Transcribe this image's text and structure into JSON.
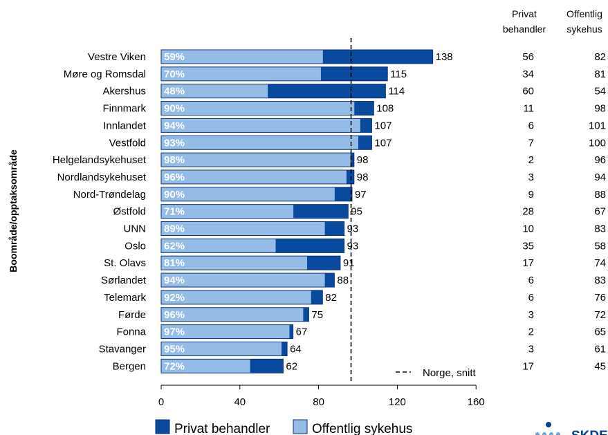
{
  "chart_data": {
    "type": "bar",
    "orientation": "horizontal",
    "stacked": true,
    "ylabel": "Boområde/opptaksområde",
    "xticks": [
      0,
      40,
      80,
      120,
      160
    ],
    "xlim": [
      0,
      160
    ],
    "reference_line": {
      "value": 96.5,
      "label": "Norge, snitt"
    },
    "table_headers": {
      "private": [
        "Privat",
        "behandler"
      ],
      "public": [
        "Offentlig",
        "sykehus"
      ]
    },
    "legend": {
      "placement": "bottom",
      "private_label": "Privat behandler",
      "public_label": "Offentlig sykehus"
    },
    "colors": {
      "private": "#0a4a9e",
      "public": "#95bce6"
    },
    "rows": [
      {
        "name": "Vestre Viken",
        "total": "138",
        "pct": "59%",
        "private": "56",
        "public": "82"
      },
      {
        "name": "Møre og Romsdal",
        "total": "115",
        "pct": "70%",
        "private": "34",
        "public": "81"
      },
      {
        "name": "Akershus",
        "total": "114",
        "pct": "48%",
        "private": "60",
        "public": "54"
      },
      {
        "name": "Finnmark",
        "total": "108",
        "pct": "90%",
        "private": "11",
        "public": "98"
      },
      {
        "name": "Innlandet",
        "total": "107",
        "pct": "94%",
        "private": "6",
        "public": "101"
      },
      {
        "name": "Vestfold",
        "total": "107",
        "pct": "93%",
        "private": "7",
        "public": "100"
      },
      {
        "name": "Helgelandsykehuset",
        "total": "98",
        "pct": "98%",
        "private": "2",
        "public": "96"
      },
      {
        "name": "Nordlandsykehuset",
        "total": "98",
        "pct": "96%",
        "private": "3",
        "public": "94"
      },
      {
        "name": "Nord-Trøndelag",
        "total": "97",
        "pct": "90%",
        "private": "9",
        "public": "88"
      },
      {
        "name": "Østfold",
        "total": "95",
        "pct": "71%",
        "private": "28",
        "public": "67"
      },
      {
        "name": "UNN",
        "total": "93",
        "pct": "89%",
        "private": "10",
        "public": "83"
      },
      {
        "name": "Oslo",
        "total": "93",
        "pct": "62%",
        "private": "35",
        "public": "58"
      },
      {
        "name": "St. Olavs",
        "total": "91",
        "pct": "81%",
        "private": "17",
        "public": "74"
      },
      {
        "name": "Sørlandet",
        "total": "88",
        "pct": "94%",
        "private": "6",
        "public": "83"
      },
      {
        "name": "Telemark",
        "total": "82",
        "pct": "92%",
        "private": "6",
        "public": "76"
      },
      {
        "name": "Førde",
        "total": "75",
        "pct": "96%",
        "private": "3",
        "public": "72"
      },
      {
        "name": "Fonna",
        "total": "67",
        "pct": "97%",
        "private": "2",
        "public": "65"
      },
      {
        "name": "Stavanger",
        "total": "64",
        "pct": "95%",
        "private": "3",
        "public": "61"
      },
      {
        "name": "Bergen",
        "total": "62",
        "pct": "72%",
        "private": "17",
        "public": "45"
      }
    ]
  },
  "logo": {
    "text": "SKDE",
    "color": "#0a3f8a"
  }
}
